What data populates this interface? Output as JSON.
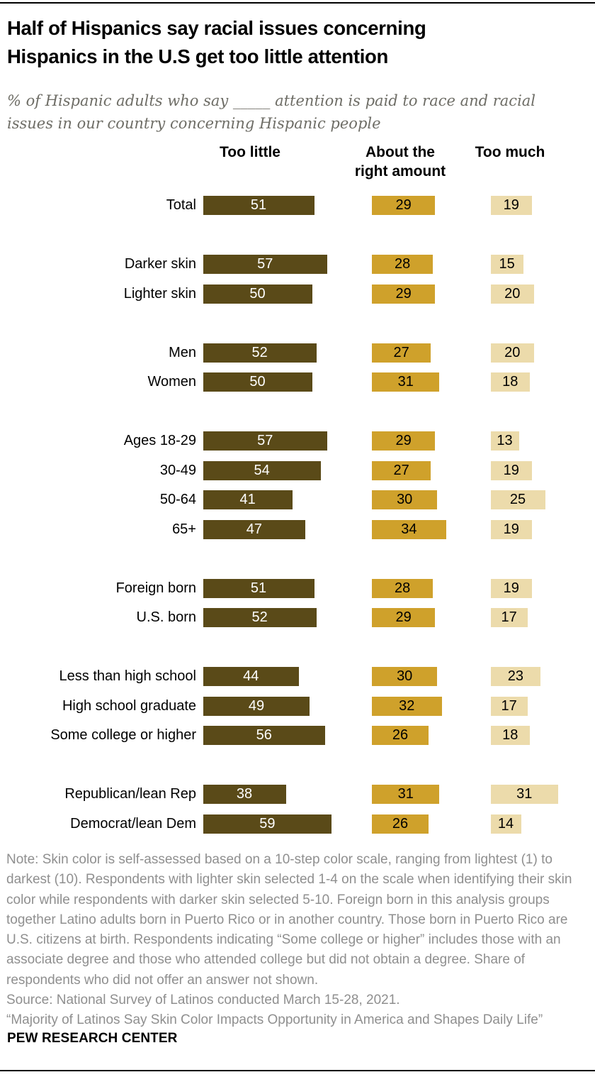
{
  "header": {
    "title_lines": [
      "Half of Hispanics say racial issues concerning",
      "Hispanics in the U.S get too little attention"
    ],
    "subtitle_lines": [
      "% of Hispanic adults who say _____ attention is paid to race and racial",
      "issues in our country concerning Hispanic people"
    ]
  },
  "chart_data": {
    "type": "bar",
    "orientation": "horizontal",
    "value_unit": "%",
    "title": "Half of Hispanics say racial issues concerning Hispanics in the U.S get too little attention",
    "series": [
      {
        "name": "Too little",
        "color": "#5a4a18",
        "text_color": "#ffffff"
      },
      {
        "name": "About the right amount",
        "color": "#cfa12b",
        "text_color": "#000000"
      },
      {
        "name": "Too much",
        "color": "#ecdbab",
        "text_color": "#000000"
      }
    ],
    "groups": [
      {
        "rows": [
          {
            "label": "Total",
            "values": [
              51,
              29,
              19
            ]
          }
        ]
      },
      {
        "rows": [
          {
            "label": "Darker skin",
            "values": [
              57,
              28,
              15
            ]
          },
          {
            "label": "Lighter skin",
            "values": [
              50,
              29,
              20
            ]
          }
        ]
      },
      {
        "rows": [
          {
            "label": "Men",
            "values": [
              52,
              27,
              20
            ]
          },
          {
            "label": "Women",
            "values": [
              50,
              31,
              18
            ]
          }
        ]
      },
      {
        "rows": [
          {
            "label": "Ages 18-29",
            "values": [
              57,
              29,
              13
            ]
          },
          {
            "label": "30-49",
            "values": [
              54,
              27,
              19
            ]
          },
          {
            "label": "50-64",
            "values": [
              41,
              30,
              25
            ]
          },
          {
            "label": "65+",
            "values": [
              47,
              34,
              19
            ]
          }
        ]
      },
      {
        "rows": [
          {
            "label": "Foreign born",
            "values": [
              51,
              28,
              19
            ]
          },
          {
            "label": "U.S. born",
            "values": [
              52,
              29,
              17
            ]
          }
        ]
      },
      {
        "rows": [
          {
            "label": "Less than high school",
            "values": [
              44,
              30,
              23
            ]
          },
          {
            "label": "High school graduate",
            "values": [
              49,
              32,
              17
            ]
          },
          {
            "label": "Some college or higher",
            "values": [
              56,
              26,
              18
            ]
          }
        ]
      },
      {
        "rows": [
          {
            "label": "Republican/lean Rep",
            "values": [
              38,
              31,
              31
            ]
          },
          {
            "label": "Democrat/lean Dem",
            "values": [
              59,
              26,
              14
            ]
          }
        ]
      }
    ]
  },
  "footer": {
    "note": "Note: Skin color is self-assessed based on a 10-step color scale, ranging from lightest (1) to darkest (10). Respondents with lighter skin selected 1-4 on the scale when identifying their skin color while respondents with darker skin selected 5-10. Foreign born in this analysis groups together Latino adults born in Puerto Rico or in another country. Those born in Puerto Rico are U.S. citizens at birth. Respondents indicating “Some college or higher” includes those with an associate degree and those who attended college but did not obtain a degree. Share of respondents who did not offer an answer not shown.",
    "source": "Source: National Survey of Latinos conducted March 15-28, 2021.",
    "report": "“Majority of Latinos Say Skin Color Impacts Opportunity in America and Shapes Daily Life”",
    "brand": "PEW RESEARCH CENTER"
  }
}
